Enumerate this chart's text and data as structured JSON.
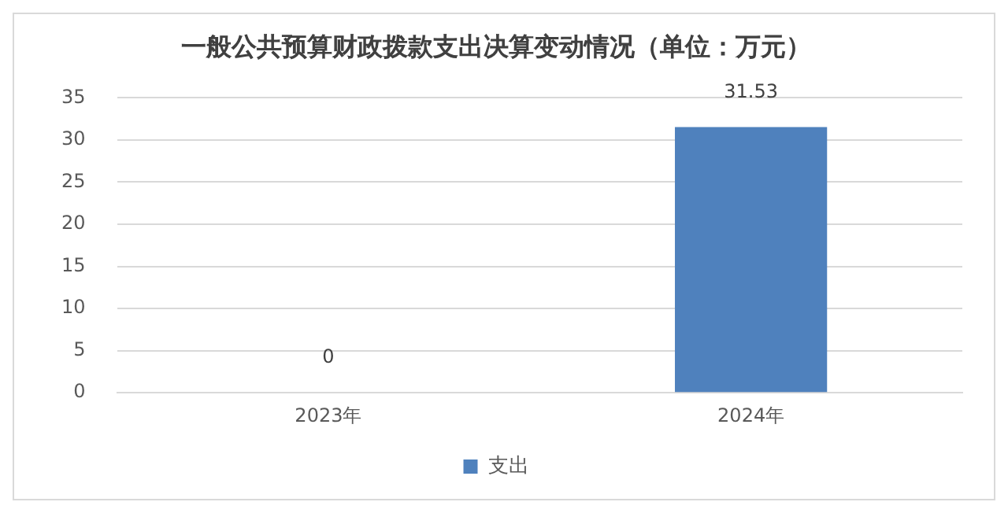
{
  "chart_data": {
    "type": "bar",
    "title": "一般公共预算财政拨款支出决算变动情况（单位：万元）",
    "categories": [
      "2023年",
      "2024年"
    ],
    "series": [
      {
        "name": "支出",
        "color": "#4f81bd",
        "values": [
          0,
          31.53
        ]
      }
    ],
    "ylim": [
      0,
      35
    ],
    "yticks": [
      0,
      5,
      10,
      15,
      20,
      25,
      30,
      35
    ],
    "grid": "y",
    "legend": "bottom",
    "data_labels": true
  }
}
